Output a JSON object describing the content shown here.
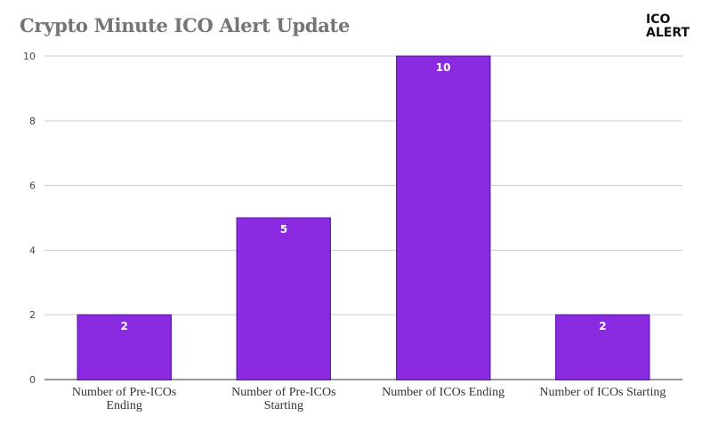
{
  "chart_data": {
    "type": "bar",
    "title": "Crypto Minute ICO Alert Update",
    "categories": [
      [
        "Number of Pre-ICOs",
        "Ending"
      ],
      [
        "Number of Pre-ICOs",
        "Starting"
      ],
      [
        "Number of ICOs Ending"
      ],
      [
        "Number of ICOs Starting"
      ]
    ],
    "values": [
      2,
      5,
      10,
      2
    ],
    "data_labels": [
      "2",
      "5",
      "10",
      "2"
    ],
    "yticks": [
      0,
      2,
      4,
      6,
      8,
      10
    ],
    "ylim": [
      0,
      10
    ],
    "grid": true,
    "bar_color": "#8a2be2",
    "xlabel": "",
    "ylabel": ""
  },
  "logo": {
    "line1": "ICO",
    "line2": "ALERT"
  }
}
